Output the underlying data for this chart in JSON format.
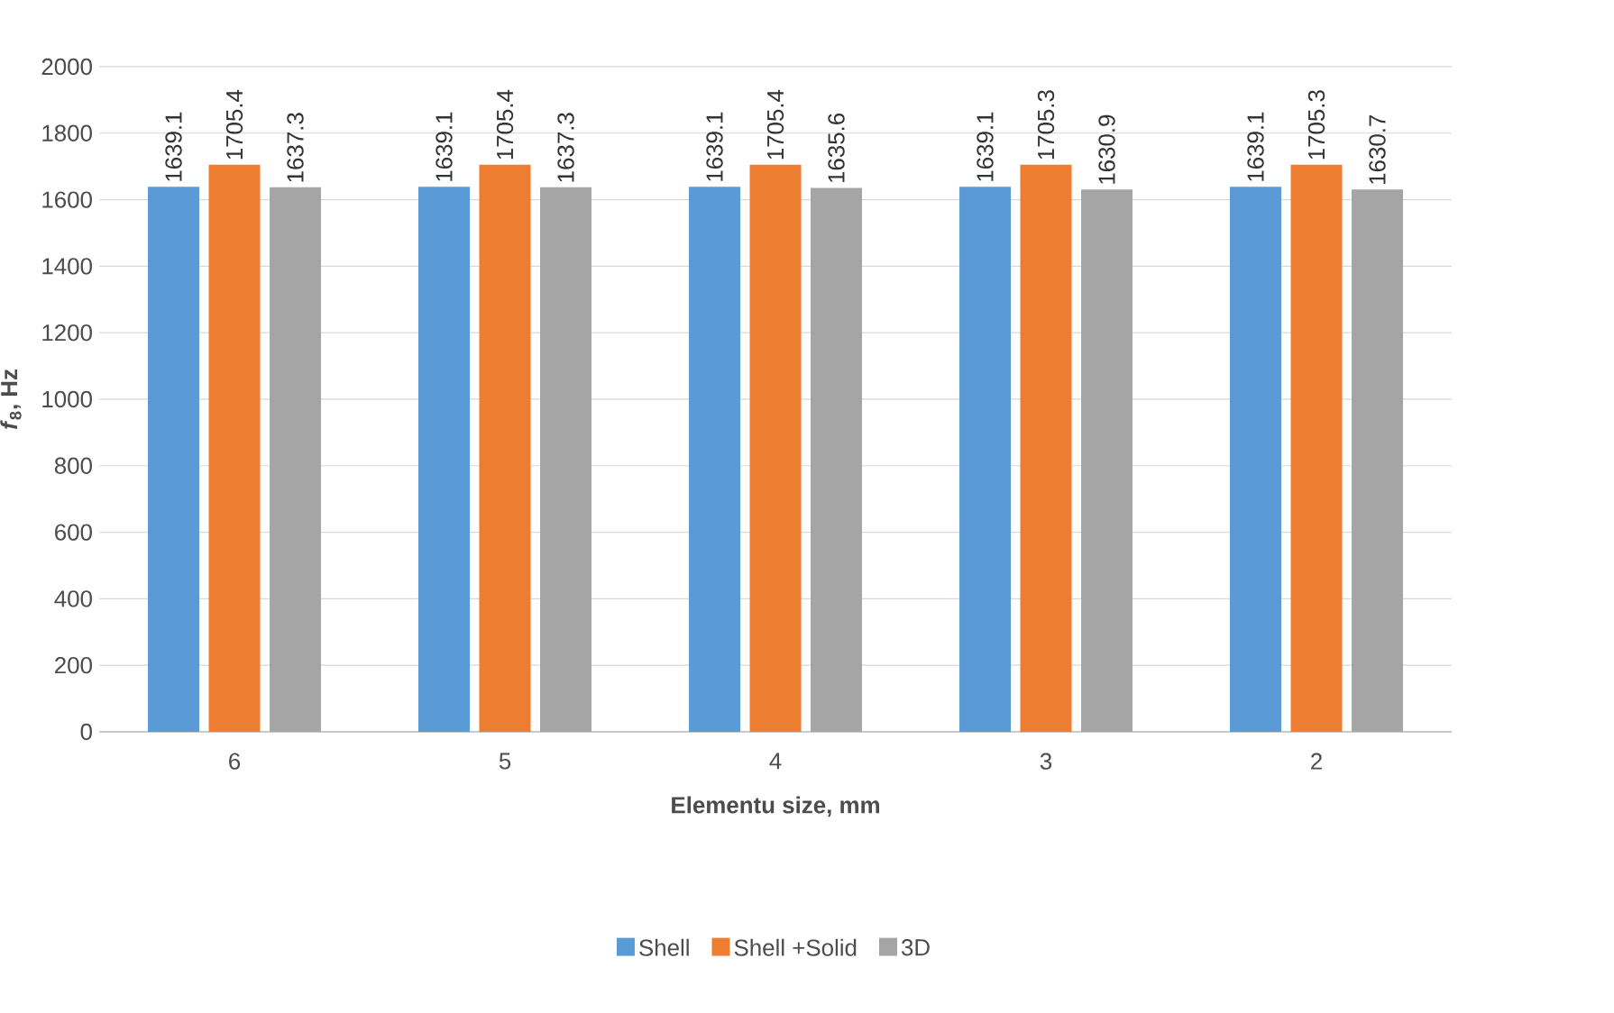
{
  "chart_data": {
    "type": "bar",
    "xlabel": "Elementu size, mm",
    "ylabel": "*f*$_{8}$,  Hz",
    "categories": [
      "6",
      "5",
      "4",
      "3",
      "2"
    ],
    "series": [
      {
        "name": "Shell",
        "color": "#5b9bd5",
        "values": [
          1639.1,
          1639.1,
          1639.1,
          1639.1,
          1639.1
        ]
      },
      {
        "name": "Shell +Solid",
        "color": "#ed7d31",
        "values": [
          1705.4,
          1705.4,
          1705.4,
          1705.3,
          1705.3
        ]
      },
      {
        "name": "3D",
        "color": "#a5a5a5",
        "values": [
          1637.3,
          1637.3,
          1635.6,
          1630.9,
          1630.7
        ]
      }
    ],
    "ylim": [
      0,
      2000
    ],
    "yticks": [
      0,
      200,
      400,
      600,
      800,
      1000,
      1200,
      1400,
      1600,
      1800,
      2000
    ],
    "grid": "y",
    "legend": "bottom",
    "data_labels": true
  }
}
